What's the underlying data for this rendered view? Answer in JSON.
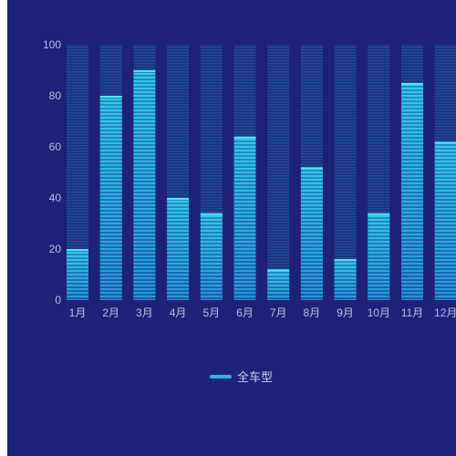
{
  "chart_data": {
    "type": "bar",
    "categories": [
      "1月",
      "2月",
      "3月",
      "4月",
      "5月",
      "6月",
      "7月",
      "8月",
      "9月",
      "10月",
      "11月",
      "12月"
    ],
    "series": [
      {
        "name": "全车型",
        "values": [
          20,
          80,
          90,
          40,
          34,
          64,
          12,
          52,
          16,
          34,
          85,
          62
        ]
      }
    ],
    "ylim": [
      0,
      100
    ],
    "yticks": [
      0,
      20,
      40,
      60,
      80,
      100
    ],
    "grid": false,
    "legend_position": "bottom-center",
    "colors": {
      "background": "#1e2178",
      "bar": "#25b6e6",
      "track": "#1a3f86"
    }
  }
}
